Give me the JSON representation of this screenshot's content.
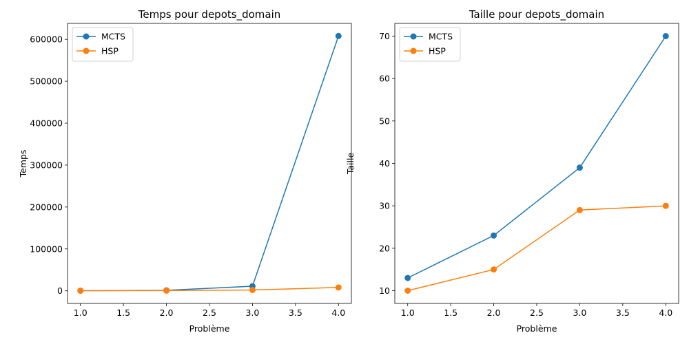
{
  "chart_data": [
    {
      "type": "line",
      "title": "Temps pour depots_domain",
      "xlabel": "Problème",
      "ylabel": "Temps",
      "x": [
        1.0,
        2.0,
        3.0,
        4.0
      ],
      "xlim": [
        0.85,
        4.15
      ],
      "ylim": [
        -30000,
        638000
      ],
      "xticks": [
        "1.0",
        "1.5",
        "2.0",
        "2.5",
        "3.0",
        "3.5",
        "4.0"
      ],
      "yticks": [
        "0",
        "100000",
        "200000",
        "300000",
        "400000",
        "500000",
        "600000"
      ],
      "series": [
        {
          "name": "MCTS",
          "color": "#1f77b4",
          "values": [
            400,
            1200,
            11000,
            608000
          ]
        },
        {
          "name": "HSP",
          "color": "#ff7f0e",
          "values": [
            300,
            500,
            2000,
            8000
          ]
        }
      ],
      "legend": "top-left",
      "grid": false
    },
    {
      "type": "line",
      "title": "Taille pour depots_domain",
      "xlabel": "Problème",
      "ylabel": "Taille",
      "x": [
        1.0,
        2.0,
        3.0,
        4.0
      ],
      "xlim": [
        0.85,
        4.15
      ],
      "ylim": [
        7,
        73
      ],
      "xticks": [
        "1.0",
        "1.5",
        "2.0",
        "2.5",
        "3.0",
        "3.5",
        "4.0"
      ],
      "yticks": [
        "10",
        "20",
        "30",
        "40",
        "50",
        "60",
        "70"
      ],
      "series": [
        {
          "name": "MCTS",
          "color": "#1f77b4",
          "values": [
            13,
            23,
            39,
            70
          ]
        },
        {
          "name": "HSP",
          "color": "#ff7f0e",
          "values": [
            10,
            15,
            29,
            30
          ]
        }
      ],
      "legend": "top-left",
      "grid": false
    }
  ]
}
